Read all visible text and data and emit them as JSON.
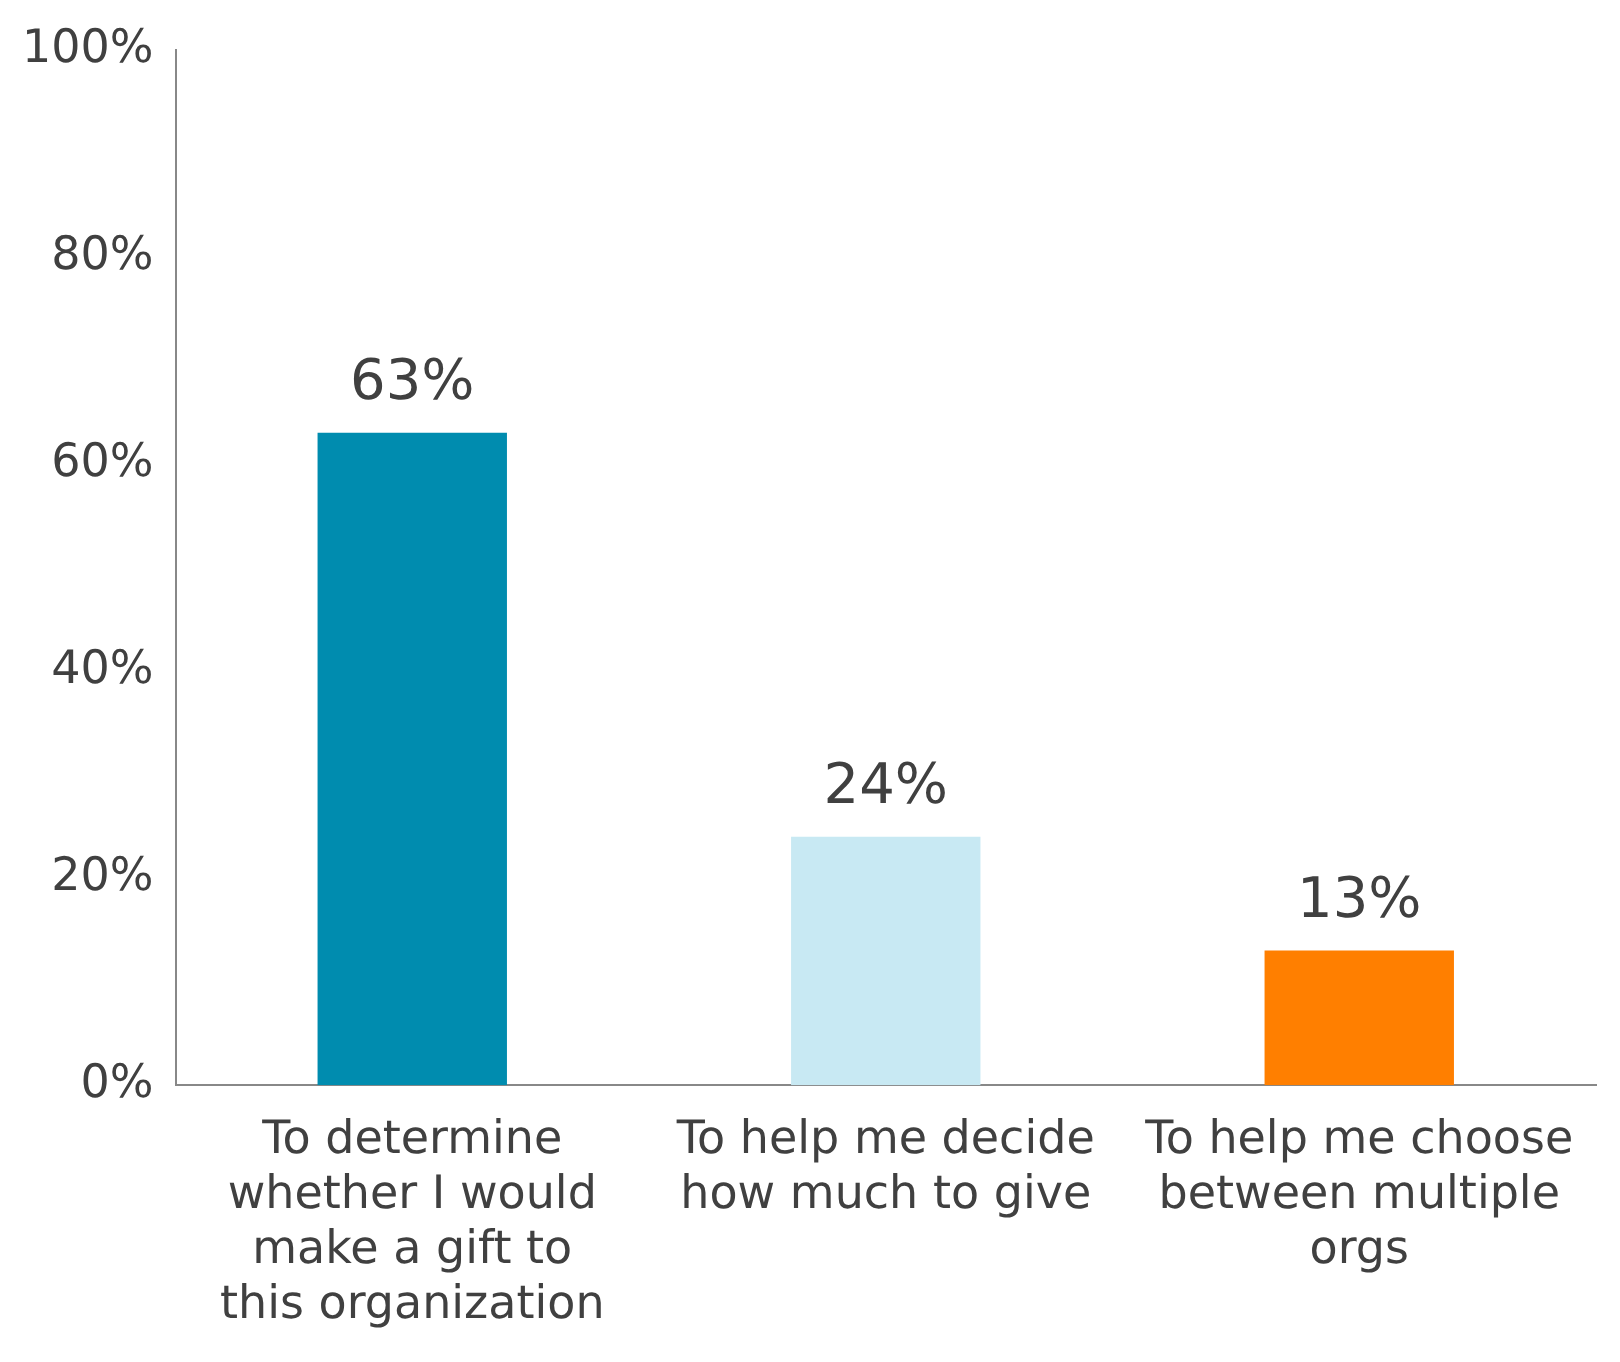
{
  "chart_data": {
    "type": "bar",
    "categories": [
      "To determine whether I would make a gift to this organization",
      "To help me decide how much to give",
      "To help me choose between multiple orgs"
    ],
    "values": [
      63,
      24,
      13
    ],
    "colors": [
      "#008caf",
      "#c8e9f3",
      "#ff7f00"
    ],
    "value_labels": [
      "63%",
      "24%",
      "13%"
    ],
    "ylim": [
      0,
      100
    ],
    "yticks": [
      {
        "value": 0,
        "label": "0%"
      },
      {
        "value": 20,
        "label": "20%"
      },
      {
        "value": 40,
        "label": "40%"
      },
      {
        "value": 60,
        "label": "60%"
      },
      {
        "value": 80,
        "label": "80%"
      },
      {
        "value": 100,
        "label": "100%"
      }
    ],
    "grid": false,
    "legend": false
  }
}
